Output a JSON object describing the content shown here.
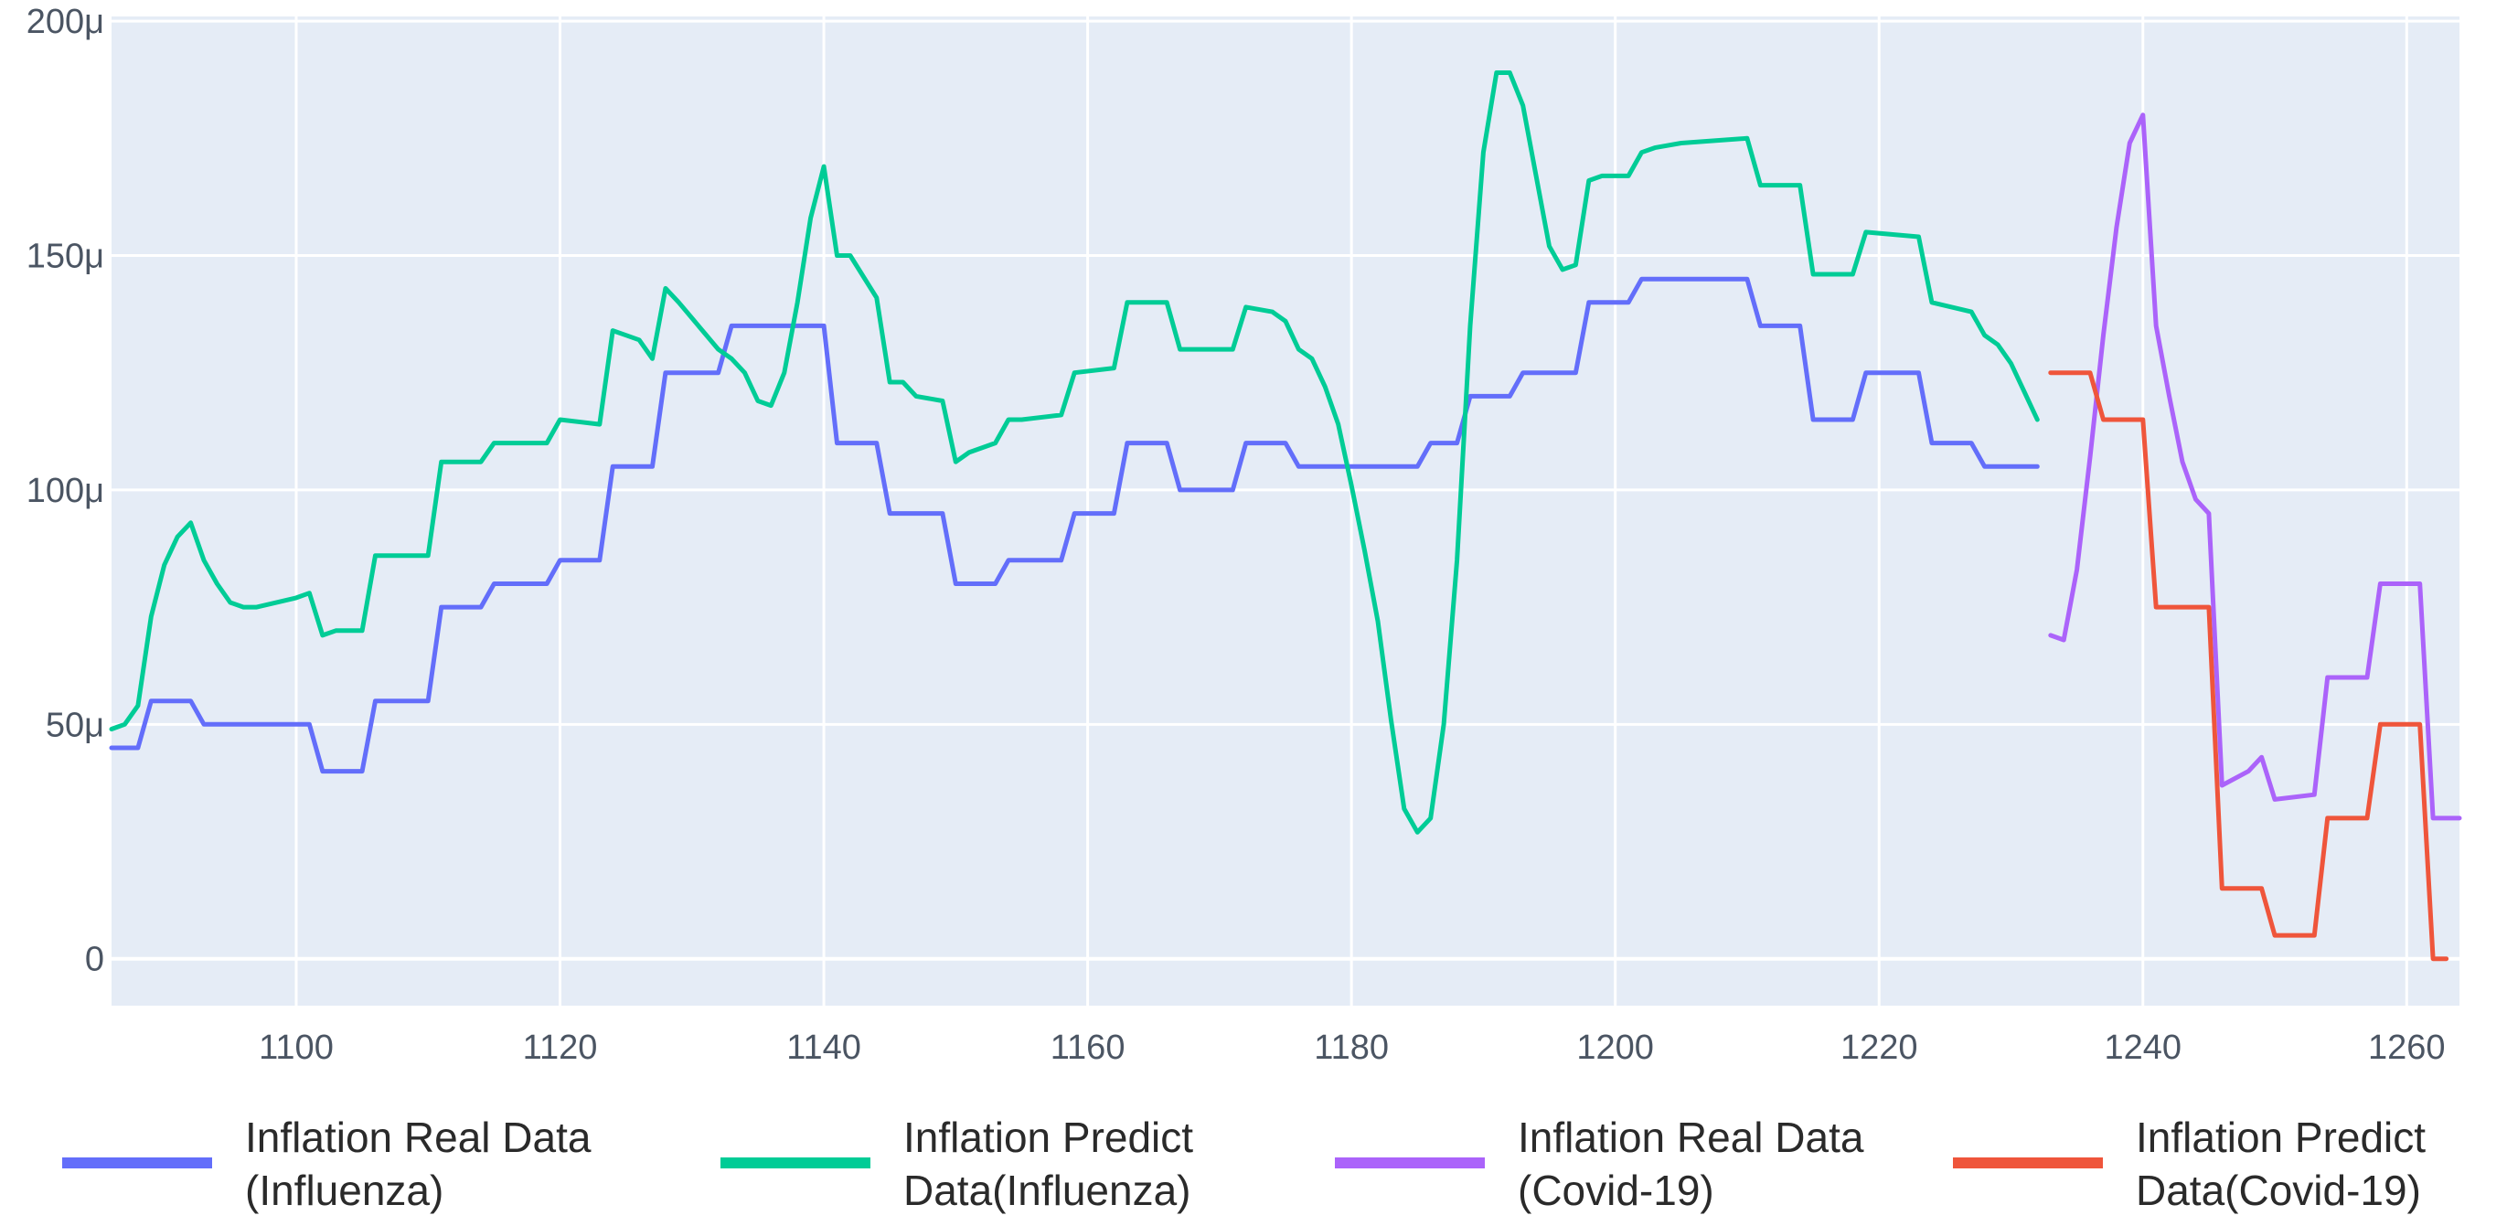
{
  "chart_data": {
    "type": "line",
    "title": "",
    "xlabel": "",
    "ylabel": "",
    "xlim": [
      1086,
      1264
    ],
    "ylim": [
      -1e-05,
      0.000201
    ],
    "grid": true,
    "legend_position": "bottom",
    "x_ticks": [
      {
        "value": 1100,
        "label": "1100"
      },
      {
        "value": 1120,
        "label": "1120"
      },
      {
        "value": 1140,
        "label": "1140"
      },
      {
        "value": 1160,
        "label": "1160"
      },
      {
        "value": 1180,
        "label": "1180"
      },
      {
        "value": 1200,
        "label": "1200"
      },
      {
        "value": 1220,
        "label": "1220"
      },
      {
        "value": 1240,
        "label": "1240"
      },
      {
        "value": 1260,
        "label": "1260"
      }
    ],
    "y_ticks": [
      {
        "value": 0,
        "label": "0"
      },
      {
        "value": 5e-05,
        "label": "50μ"
      },
      {
        "value": 0.0001,
        "label": "100μ"
      },
      {
        "value": 0.00015,
        "label": "150μ"
      },
      {
        "value": 0.0002,
        "label": "200μ"
      }
    ],
    "series": [
      {
        "name_lines": [
          "Inflation  Real Data",
          "(Influenza)"
        ],
        "color": "#636efa",
        "points": [
          [
            1086,
            4.5e-05
          ],
          [
            1088,
            4.5e-05
          ],
          [
            1089,
            5.5e-05
          ],
          [
            1092,
            5.5e-05
          ],
          [
            1093,
            5e-05
          ],
          [
            1101,
            5e-05
          ],
          [
            1102,
            4e-05
          ],
          [
            1105,
            4e-05
          ],
          [
            1106,
            5.5e-05
          ],
          [
            1110,
            5.5e-05
          ],
          [
            1111,
            7.5e-05
          ],
          [
            1114,
            7.5e-05
          ],
          [
            1115,
            8e-05
          ],
          [
            1119,
            8e-05
          ],
          [
            1120,
            8.5e-05
          ],
          [
            1123,
            8.5e-05
          ],
          [
            1124,
            0.000105
          ],
          [
            1127,
            0.000105
          ],
          [
            1128,
            0.000125
          ],
          [
            1132,
            0.000125
          ],
          [
            1133,
            0.000135
          ],
          [
            1139,
            0.000135
          ],
          [
            1140,
            0.000135
          ],
          [
            1141,
            0.00011
          ],
          [
            1144,
            0.00011
          ],
          [
            1145,
            9.5e-05
          ],
          [
            1149,
            9.5e-05
          ],
          [
            1150,
            8e-05
          ],
          [
            1153,
            8e-05
          ],
          [
            1154,
            8.5e-05
          ],
          [
            1158,
            8.5e-05
          ],
          [
            1159,
            9.5e-05
          ],
          [
            1162,
            9.5e-05
          ],
          [
            1163,
            0.00011
          ],
          [
            1166,
            0.00011
          ],
          [
            1167,
            0.0001
          ],
          [
            1171,
            0.0001
          ],
          [
            1172,
            0.00011
          ],
          [
            1175,
            0.00011
          ],
          [
            1176,
            0.000105
          ],
          [
            1184,
            0.000105
          ],
          [
            1185,
            0.000105
          ],
          [
            1186,
            0.00011
          ],
          [
            1188,
            0.00011
          ],
          [
            1189,
            0.00012
          ],
          [
            1192,
            0.00012
          ],
          [
            1193,
            0.000125
          ],
          [
            1197,
            0.000125
          ],
          [
            1198,
            0.00014
          ],
          [
            1201,
            0.00014
          ],
          [
            1202,
            0.000145
          ],
          [
            1210,
            0.000145
          ],
          [
            1211,
            0.000135
          ],
          [
            1214,
            0.000135
          ],
          [
            1215,
            0.000115
          ],
          [
            1218,
            0.000115
          ],
          [
            1219,
            0.000125
          ],
          [
            1223,
            0.000125
          ],
          [
            1224,
            0.00011
          ],
          [
            1227,
            0.00011
          ],
          [
            1228,
            0.000105
          ],
          [
            1232,
            0.000105
          ]
        ]
      },
      {
        "name_lines": [
          "Inflation  Predict",
          "Data(Influenza)"
        ],
        "color": "#00cc96",
        "points": [
          [
            1086,
            4.9e-05
          ],
          [
            1087,
            5e-05
          ],
          [
            1088,
            5.4e-05
          ],
          [
            1089,
            7.3e-05
          ],
          [
            1090,
            8.4e-05
          ],
          [
            1091,
            9e-05
          ],
          [
            1092,
            9.3e-05
          ],
          [
            1093,
            8.5e-05
          ],
          [
            1094,
            8e-05
          ],
          [
            1095,
            7.6e-05
          ],
          [
            1096,
            7.5e-05
          ],
          [
            1097,
            7.5e-05
          ],
          [
            1100,
            7.7e-05
          ],
          [
            1101,
            7.8e-05
          ],
          [
            1102,
            6.9e-05
          ],
          [
            1103,
            7e-05
          ],
          [
            1105,
            7e-05
          ],
          [
            1106,
            8.6e-05
          ],
          [
            1110,
            8.6e-05
          ],
          [
            1111,
            0.000106
          ],
          [
            1114,
            0.000106
          ],
          [
            1115,
            0.00011
          ],
          [
            1119,
            0.00011
          ],
          [
            1120,
            0.000115
          ],
          [
            1123,
            0.000114
          ],
          [
            1124,
            0.000134
          ],
          [
            1125,
            0.000133
          ],
          [
            1126,
            0.000132
          ],
          [
            1127,
            0.000128
          ],
          [
            1128,
            0.000143
          ],
          [
            1129,
            0.00014
          ],
          [
            1132,
            0.00013
          ],
          [
            1133,
            0.000128
          ],
          [
            1134,
            0.000125
          ],
          [
            1135,
            0.000119
          ],
          [
            1136,
            0.000118
          ],
          [
            1137,
            0.000125
          ],
          [
            1138,
            0.00014
          ],
          [
            1139,
            0.000158
          ],
          [
            1140,
            0.000169
          ],
          [
            1141,
            0.00015
          ],
          [
            1142,
            0.00015
          ],
          [
            1144,
            0.000141
          ],
          [
            1145,
            0.000123
          ],
          [
            1146,
            0.000123
          ],
          [
            1147,
            0.00012
          ],
          [
            1149,
            0.000119
          ],
          [
            1150,
            0.000106
          ],
          [
            1151,
            0.000108
          ],
          [
            1153,
            0.00011
          ],
          [
            1154,
            0.000115
          ],
          [
            1155,
            0.000115
          ],
          [
            1158,
            0.000116
          ],
          [
            1159,
            0.000125
          ],
          [
            1162,
            0.000126
          ],
          [
            1163,
            0.00014
          ],
          [
            1166,
            0.00014
          ],
          [
            1167,
            0.00013
          ],
          [
            1171,
            0.00013
          ],
          [
            1172,
            0.000139
          ],
          [
            1174,
            0.000138
          ],
          [
            1175,
            0.000136
          ],
          [
            1176,
            0.00013
          ],
          [
            1177,
            0.000128
          ],
          [
            1178,
            0.000122
          ],
          [
            1179,
            0.000114
          ],
          [
            1180,
            0.000101
          ],
          [
            1181,
            8.7e-05
          ],
          [
            1182,
            7.2e-05
          ],
          [
            1183,
            5.1e-05
          ],
          [
            1184,
            3.2e-05
          ],
          [
            1185,
            2.7e-05
          ],
          [
            1186,
            3e-05
          ],
          [
            1187,
            5e-05
          ],
          [
            1188,
            8.5e-05
          ],
          [
            1189,
            0.000135
          ],
          [
            1190,
            0.000172
          ],
          [
            1191,
            0.000189
          ],
          [
            1192,
            0.000189
          ],
          [
            1193,
            0.000182
          ],
          [
            1194,
            0.000167
          ],
          [
            1195,
            0.000152
          ],
          [
            1196,
            0.000147
          ],
          [
            1197,
            0.000148
          ],
          [
            1198,
            0.000166
          ],
          [
            1199,
            0.000167
          ],
          [
            1201,
            0.000167
          ],
          [
            1202,
            0.000172
          ],
          [
            1203,
            0.000173
          ],
          [
            1205,
            0.000174
          ],
          [
            1210,
            0.000175
          ],
          [
            1211,
            0.000165
          ],
          [
            1214,
            0.000165
          ],
          [
            1215,
            0.000146
          ],
          [
            1218,
            0.000146
          ],
          [
            1219,
            0.000155
          ],
          [
            1223,
            0.000154
          ],
          [
            1224,
            0.00014
          ],
          [
            1227,
            0.000138
          ],
          [
            1228,
            0.000133
          ],
          [
            1229,
            0.000131
          ],
          [
            1230,
            0.000127
          ],
          [
            1231,
            0.000121
          ],
          [
            1232,
            0.000115
          ]
        ]
      },
      {
        "name_lines": [
          "Inflation  Real Data",
          "(Covid-19)"
        ],
        "color": "#ab63fa",
        "points": [
          [
            1233,
            6.9e-05
          ],
          [
            1234,
            6.8e-05
          ],
          [
            1235,
            8.3e-05
          ],
          [
            1236,
            0.000107
          ],
          [
            1237,
            0.000133
          ],
          [
            1238,
            0.000156
          ],
          [
            1239,
            0.000174
          ],
          [
            1240,
            0.00018
          ],
          [
            1241,
            0.000135
          ],
          [
            1242,
            0.00012
          ],
          [
            1243,
            0.000106
          ],
          [
            1244,
            9.8e-05
          ],
          [
            1245,
            9.5e-05
          ],
          [
            1246,
            3.7e-05
          ],
          [
            1248,
            4e-05
          ],
          [
            1249,
            4.3e-05
          ],
          [
            1250,
            3.4e-05
          ],
          [
            1253,
            3.5e-05
          ],
          [
            1254,
            6e-05
          ],
          [
            1257,
            6e-05
          ],
          [
            1258,
            8e-05
          ],
          [
            1261,
            8e-05
          ],
          [
            1262,
            3e-05
          ],
          [
            1264,
            3e-05
          ]
        ]
      },
      {
        "name_lines": [
          "Inflation  Predict",
          "Data(Covid-19)"
        ],
        "color": "#ef553b",
        "points": [
          [
            1233,
            0.000125
          ],
          [
            1236,
            0.000125
          ],
          [
            1237,
            0.000115
          ],
          [
            1240,
            0.000115
          ],
          [
            1241,
            7.5e-05
          ],
          [
            1245,
            7.5e-05
          ],
          [
            1246,
            1.5e-05
          ],
          [
            1249,
            1.5e-05
          ],
          [
            1250,
            5e-06
          ],
          [
            1253,
            5e-06
          ],
          [
            1254,
            3e-05
          ],
          [
            1257,
            3e-05
          ],
          [
            1258,
            5e-05
          ],
          [
            1261,
            5e-05
          ],
          [
            1262,
            0
          ],
          [
            1263,
            0
          ]
        ]
      }
    ]
  }
}
